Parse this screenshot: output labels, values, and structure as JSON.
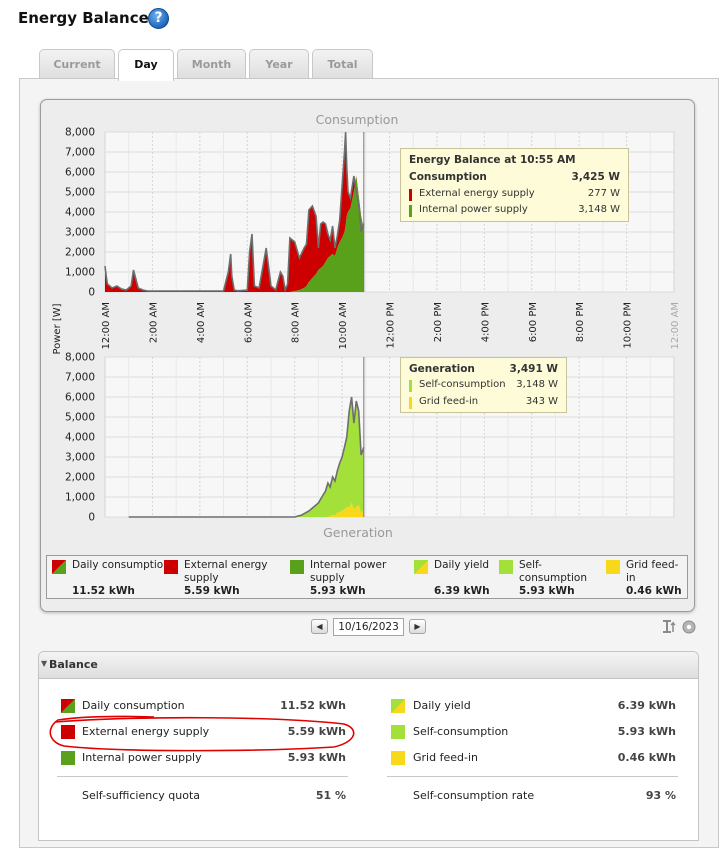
{
  "page": {
    "title": "Energy Balance"
  },
  "tabs": [
    {
      "label": "Current"
    },
    {
      "label": "Day",
      "active": true
    },
    {
      "label": "Month"
    },
    {
      "label": "Year"
    },
    {
      "label": "Total"
    }
  ],
  "chart_data": {
    "type": "area",
    "y_axis_label": "Power [W]",
    "ylim": [
      0,
      8000
    ],
    "y_ticks": [
      "8,000",
      "7,000",
      "6,000",
      "5,000",
      "4,000",
      "3,000",
      "2,000",
      "1,000",
      "0"
    ],
    "x_ticks": [
      "12:00 AM",
      "2:00 AM",
      "4:00 AM",
      "6:00 AM",
      "8:00 AM",
      "10:00 AM",
      "12:00 PM",
      "2:00 PM",
      "4:00 PM",
      "6:00 PM",
      "8:00 PM",
      "10:00 PM",
      "12:00 AM"
    ],
    "grid": true,
    "cursor_hour": 10.917,
    "consumption": {
      "title": "Consumption",
      "hours": [
        0.0,
        0.05,
        0.1,
        0.3,
        0.5,
        0.7,
        0.9,
        1.1,
        1.15,
        1.2,
        1.4,
        1.6,
        1.8,
        2.0,
        3.0,
        4.0,
        4.5,
        5.0,
        5.2,
        5.3,
        5.35,
        5.45,
        5.6,
        6.0,
        6.1,
        6.2,
        6.3,
        6.5,
        6.8,
        7.0,
        7.2,
        7.4,
        7.5,
        7.6,
        7.7,
        7.8,
        8.0,
        8.2,
        8.4,
        8.5,
        8.6,
        8.75,
        8.9,
        9.0,
        9.1,
        9.2,
        9.3,
        9.4,
        9.5,
        9.6,
        9.7,
        9.8,
        9.9,
        10.0,
        10.1,
        10.15,
        10.2,
        10.25,
        10.35,
        10.5,
        10.6,
        10.7,
        10.8,
        10.917
      ],
      "internal": [
        0,
        0,
        0,
        0,
        0,
        0,
        0,
        0,
        0,
        0,
        0,
        0,
        0,
        0,
        0,
        0,
        0,
        0,
        0,
        0,
        0,
        0,
        0,
        0,
        0,
        0,
        0,
        0,
        0,
        0,
        0,
        0,
        0,
        0,
        0,
        0,
        50,
        100,
        200,
        300,
        500,
        700,
        900,
        1100,
        1200,
        1300,
        1500,
        1700,
        1800,
        1900,
        1800,
        2200,
        2500,
        2700,
        3000,
        3300,
        3800,
        4000,
        4200,
        5000,
        5800,
        4800,
        3800,
        3148
      ],
      "total": [
        1300,
        800,
        400,
        200,
        300,
        150,
        100,
        300,
        700,
        1100,
        200,
        100,
        50,
        50,
        50,
        50,
        50,
        50,
        1000,
        1900,
        800,
        100,
        60,
        100,
        2000,
        2900,
        300,
        200,
        2200,
        300,
        100,
        1000,
        800,
        100,
        400,
        2700,
        2500,
        1700,
        2200,
        2400,
        4100,
        4300,
        3800,
        2200,
        3400,
        3500,
        3400,
        2900,
        2600,
        3300,
        2200,
        2800,
        3600,
        5300,
        7000,
        8000,
        6200,
        5000,
        4700,
        5800,
        5000,
        4400,
        3000,
        3425
      ]
    },
    "generation": {
      "title": "Generation",
      "hours": [
        1.0,
        8.0,
        8.3,
        8.6,
        8.8,
        9.0,
        9.1,
        9.2,
        9.3,
        9.4,
        9.5,
        9.6,
        9.7,
        9.8,
        9.9,
        10.0,
        10.1,
        10.2,
        10.3,
        10.4,
        10.5,
        10.6,
        10.7,
        10.8,
        10.917
      ],
      "total": [
        0,
        0,
        100,
        300,
        500,
        700,
        900,
        1100,
        1300,
        1700,
        1500,
        2000,
        1800,
        2300,
        2700,
        3000,
        3500,
        4000,
        5300,
        6000,
        4700,
        5800,
        5300,
        3100,
        3491
      ],
      "feed_in": [
        0,
        0,
        0,
        0,
        0,
        0,
        0,
        0,
        0,
        0,
        50,
        100,
        80,
        200,
        250,
        300,
        400,
        500,
        500,
        700,
        400,
        500,
        600,
        200,
        343
      ]
    }
  },
  "colors": {
    "external": "#cc0000",
    "internal": "#5aa11b",
    "self_consumption": "#a4e03a",
    "grid_feed_in": "#f7d81b",
    "total_line": "#6e6e6e"
  },
  "tooltip_consumption": {
    "title": "Energy Balance at 10:55 AM",
    "header_label": "Consumption",
    "header_value": "3,425 W",
    "rows": [
      {
        "label": "External energy supply",
        "value": "277 W"
      },
      {
        "label": "Internal power supply",
        "value": "3,148 W"
      }
    ]
  },
  "tooltip_generation": {
    "header_label": "Generation",
    "header_value": "3,491 W",
    "rows": [
      {
        "label": "Self-consumption",
        "value": "3,148 W"
      },
      {
        "label": "Grid feed-in",
        "value": "343 W"
      }
    ]
  },
  "legend": [
    {
      "label": "Daily consumption",
      "value": "11.52 kWh",
      "swatch": "split-red-green"
    },
    {
      "label": "External energy supply",
      "value": "5.59 kWh",
      "swatch": "red"
    },
    {
      "label": "Internal power supply",
      "value": "5.93 kWh",
      "swatch": "green"
    },
    {
      "label": "Daily yield",
      "value": "6.39 kWh",
      "swatch": "split-lime-yellow"
    },
    {
      "label": "Self-consumption",
      "value": "5.93 kWh",
      "swatch": "lime"
    },
    {
      "label": "Grid feed-in",
      "value": "0.46 kWh",
      "swatch": "yellow"
    }
  ],
  "date_nav": {
    "date": "10/16/2023",
    "prev_icon": "triangle-left",
    "next_icon": "triangle-right"
  },
  "balance": {
    "title": "Balance",
    "left": [
      {
        "label": "Daily consumption",
        "value": "11.52 kWh"
      },
      {
        "label": "External energy supply",
        "value": "5.59 kWh"
      },
      {
        "label": "Internal power supply",
        "value": "5.93 kWh"
      }
    ],
    "right": [
      {
        "label": "Daily yield",
        "value": "6.39 kWh"
      },
      {
        "label": "Self-consumption",
        "value": "5.93 kWh"
      },
      {
        "label": "Grid feed-in",
        "value": "0.46 kWh"
      }
    ],
    "quota_left": {
      "label": "Self-sufficiency quota",
      "value": "51 %"
    },
    "quota_right": {
      "label": "Self-consumption rate",
      "value": "93 %"
    }
  }
}
